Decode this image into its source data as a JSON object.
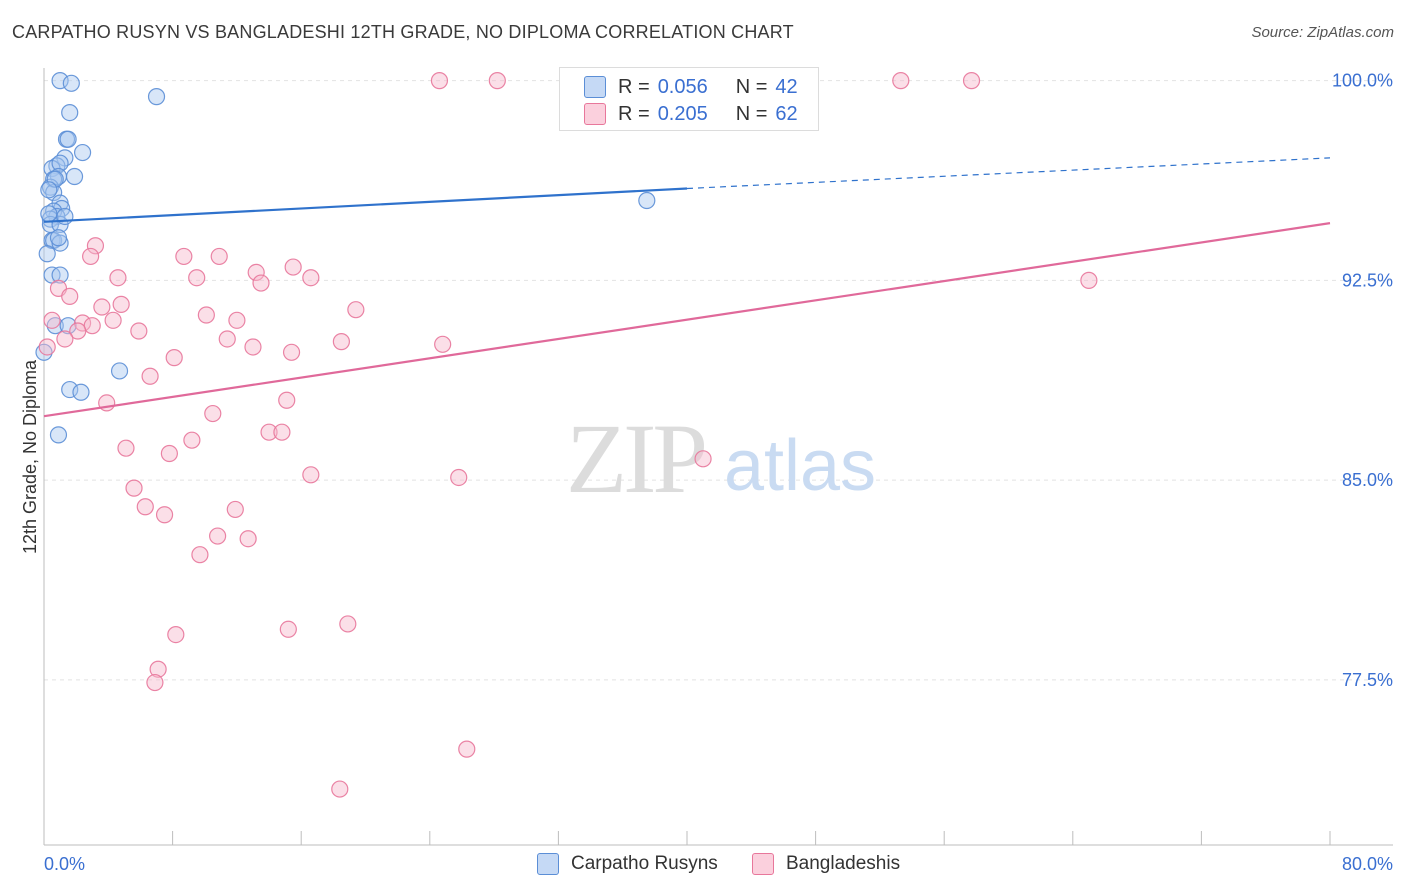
{
  "title": "CARPATHO RUSYN VS BANGLADESHI 12TH GRADE, NO DIPLOMA CORRELATION CHART",
  "source": "Source: ZipAtlas.com",
  "watermark": {
    "zip": "ZIP",
    "atlas": "atlas"
  },
  "legend": {
    "r_label": "R =",
    "n_label": "N =",
    "rows": [
      {
        "r": "0.056",
        "n": "42"
      },
      {
        "r": "0.205",
        "n": "62"
      }
    ]
  },
  "bottom_legend": [
    "Carpatho Rusyns",
    "Bangladeshis"
  ],
  "colors": {
    "blue": "#5b8ed6",
    "blue_fill": "#a9c8f0",
    "pink": "#e8779b",
    "pink_fill": "#f6b8cb",
    "axis_text": "#3a6fd1",
    "trend_blue": "#2f72cc",
    "trend_pink": "#e0699a"
  },
  "chart_data": {
    "type": "scatter",
    "xlabel": "",
    "ylabel": "12th Grade, No Diploma",
    "xlim": [
      0,
      80
    ],
    "ylim": [
      71.3,
      100.7
    ],
    "x_tick_labels": [
      "0.0%",
      "80.0%"
    ],
    "y_ticks": [
      100.0,
      92.5,
      85.0,
      77.5
    ],
    "y_tick_labels": [
      "100.0%",
      "92.5%",
      "85.0%",
      "77.5%"
    ],
    "grid": true,
    "series": [
      {
        "name": "Carpatho Rusyns",
        "r": 0.056,
        "n": 42,
        "trend": {
          "x0": 0,
          "y0": 94.7,
          "x1": 40,
          "y1": 95.95,
          "dashed_to_x": 80,
          "dashed_to_y": 97.1
        },
        "points": [
          [
            1.0,
            100.0
          ],
          [
            1.7,
            99.9
          ],
          [
            7.0,
            99.4
          ],
          [
            1.6,
            98.8
          ],
          [
            1.4,
            97.8
          ],
          [
            1.5,
            97.8
          ],
          [
            2.4,
            97.3
          ],
          [
            1.3,
            97.1
          ],
          [
            0.8,
            96.8
          ],
          [
            0.5,
            96.7
          ],
          [
            1.0,
            96.9
          ],
          [
            0.9,
            96.4
          ],
          [
            1.9,
            96.4
          ],
          [
            0.6,
            96.3
          ],
          [
            0.4,
            96.0
          ],
          [
            0.6,
            95.8
          ],
          [
            1.0,
            95.4
          ],
          [
            1.1,
            95.2
          ],
          [
            0.6,
            95.1
          ],
          [
            0.8,
            94.9
          ],
          [
            0.4,
            94.8
          ],
          [
            0.4,
            94.6
          ],
          [
            1.0,
            94.6
          ],
          [
            0.5,
            94.0
          ],
          [
            0.6,
            94.0
          ],
          [
            1.0,
            93.9
          ],
          [
            0.2,
            93.5
          ],
          [
            0.5,
            92.7
          ],
          [
            1.0,
            92.7
          ],
          [
            0.7,
            90.8
          ],
          [
            1.5,
            90.8
          ],
          [
            4.7,
            89.1
          ],
          [
            1.6,
            88.4
          ],
          [
            2.3,
            88.3
          ],
          [
            0.9,
            86.7
          ],
          [
            37.5,
            95.5
          ],
          [
            0.0,
            89.8
          ],
          [
            0.3,
            95.0
          ],
          [
            1.3,
            94.9
          ],
          [
            0.7,
            96.3
          ],
          [
            0.9,
            94.1
          ],
          [
            0.3,
            95.9
          ]
        ]
      },
      {
        "name": "Bangladeshis",
        "r": 0.205,
        "n": 62,
        "trend": {
          "x0": 0,
          "y0": 87.4,
          "x1": 80,
          "y1": 94.65
        },
        "points": [
          [
            24.6,
            100.0
          ],
          [
            28.2,
            100.0
          ],
          [
            53.3,
            100.0
          ],
          [
            57.7,
            100.0
          ],
          [
            3.2,
            93.8
          ],
          [
            2.9,
            93.4
          ],
          [
            8.7,
            93.4
          ],
          [
            10.9,
            93.4
          ],
          [
            15.5,
            93.0
          ],
          [
            13.2,
            92.8
          ],
          [
            4.6,
            92.6
          ],
          [
            9.5,
            92.6
          ],
          [
            16.6,
            92.6
          ],
          [
            13.5,
            92.4
          ],
          [
            65.0,
            92.5
          ],
          [
            0.9,
            92.2
          ],
          [
            1.6,
            91.9
          ],
          [
            4.8,
            91.6
          ],
          [
            3.6,
            91.5
          ],
          [
            19.4,
            91.4
          ],
          [
            10.1,
            91.2
          ],
          [
            12.0,
            91.0
          ],
          [
            4.3,
            91.0
          ],
          [
            0.5,
            91.0
          ],
          [
            2.4,
            90.9
          ],
          [
            3.0,
            90.8
          ],
          [
            2.1,
            90.6
          ],
          [
            5.9,
            90.6
          ],
          [
            1.3,
            90.3
          ],
          [
            11.4,
            90.3
          ],
          [
            18.5,
            90.2
          ],
          [
            24.8,
            90.1
          ],
          [
            13.0,
            90.0
          ],
          [
            0.2,
            90.0
          ],
          [
            15.4,
            89.8
          ],
          [
            8.1,
            89.6
          ],
          [
            6.6,
            88.9
          ],
          [
            15.1,
            88.0
          ],
          [
            3.9,
            87.9
          ],
          [
            10.5,
            87.5
          ],
          [
            14.0,
            86.8
          ],
          [
            14.8,
            86.8
          ],
          [
            9.2,
            86.5
          ],
          [
            5.1,
            86.2
          ],
          [
            7.8,
            86.0
          ],
          [
            41.0,
            85.8
          ],
          [
            16.6,
            85.2
          ],
          [
            25.8,
            85.1
          ],
          [
            5.6,
            84.7
          ],
          [
            6.3,
            84.0
          ],
          [
            11.9,
            83.9
          ],
          [
            7.5,
            83.7
          ],
          [
            10.8,
            82.9
          ],
          [
            12.7,
            82.8
          ],
          [
            9.7,
            82.2
          ],
          [
            8.2,
            79.2
          ],
          [
            15.2,
            79.4
          ],
          [
            18.9,
            79.6
          ],
          [
            7.1,
            77.9
          ],
          [
            6.9,
            77.4
          ],
          [
            26.3,
            74.9
          ],
          [
            18.4,
            73.4
          ]
        ]
      }
    ]
  }
}
